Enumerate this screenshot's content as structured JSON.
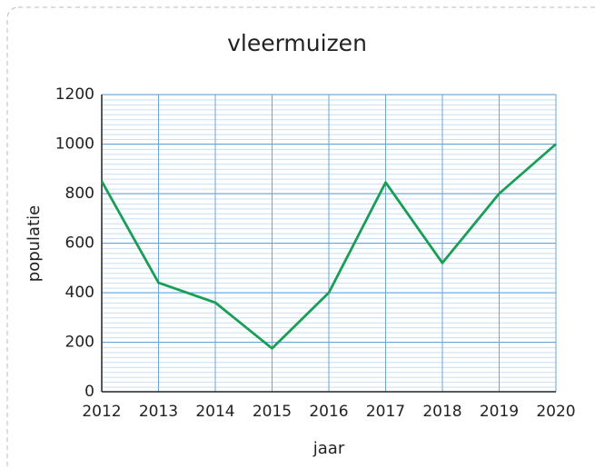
{
  "chart_data": {
    "type": "line",
    "title": "vleermuizen",
    "x_label": "jaar",
    "y_label": "populatie",
    "x": [
      2012,
      2013,
      2014,
      2015,
      2016,
      2017,
      2018,
      2019,
      2020
    ],
    "series": [
      {
        "name": "vleermuizen",
        "color": "#1a9e55",
        "values": [
          850,
          440,
          360,
          175,
          400,
          845,
          520,
          800,
          1000
        ]
      }
    ],
    "xlim": [
      2012,
      2020
    ],
    "xticks": [
      2012,
      2013,
      2014,
      2015,
      2016,
      2017,
      2018,
      2019,
      2020
    ],
    "ylim": [
      0,
      1200
    ],
    "yticks": [
      0,
      200,
      400,
      600,
      800,
      1000,
      1200
    ],
    "grid": true
  }
}
